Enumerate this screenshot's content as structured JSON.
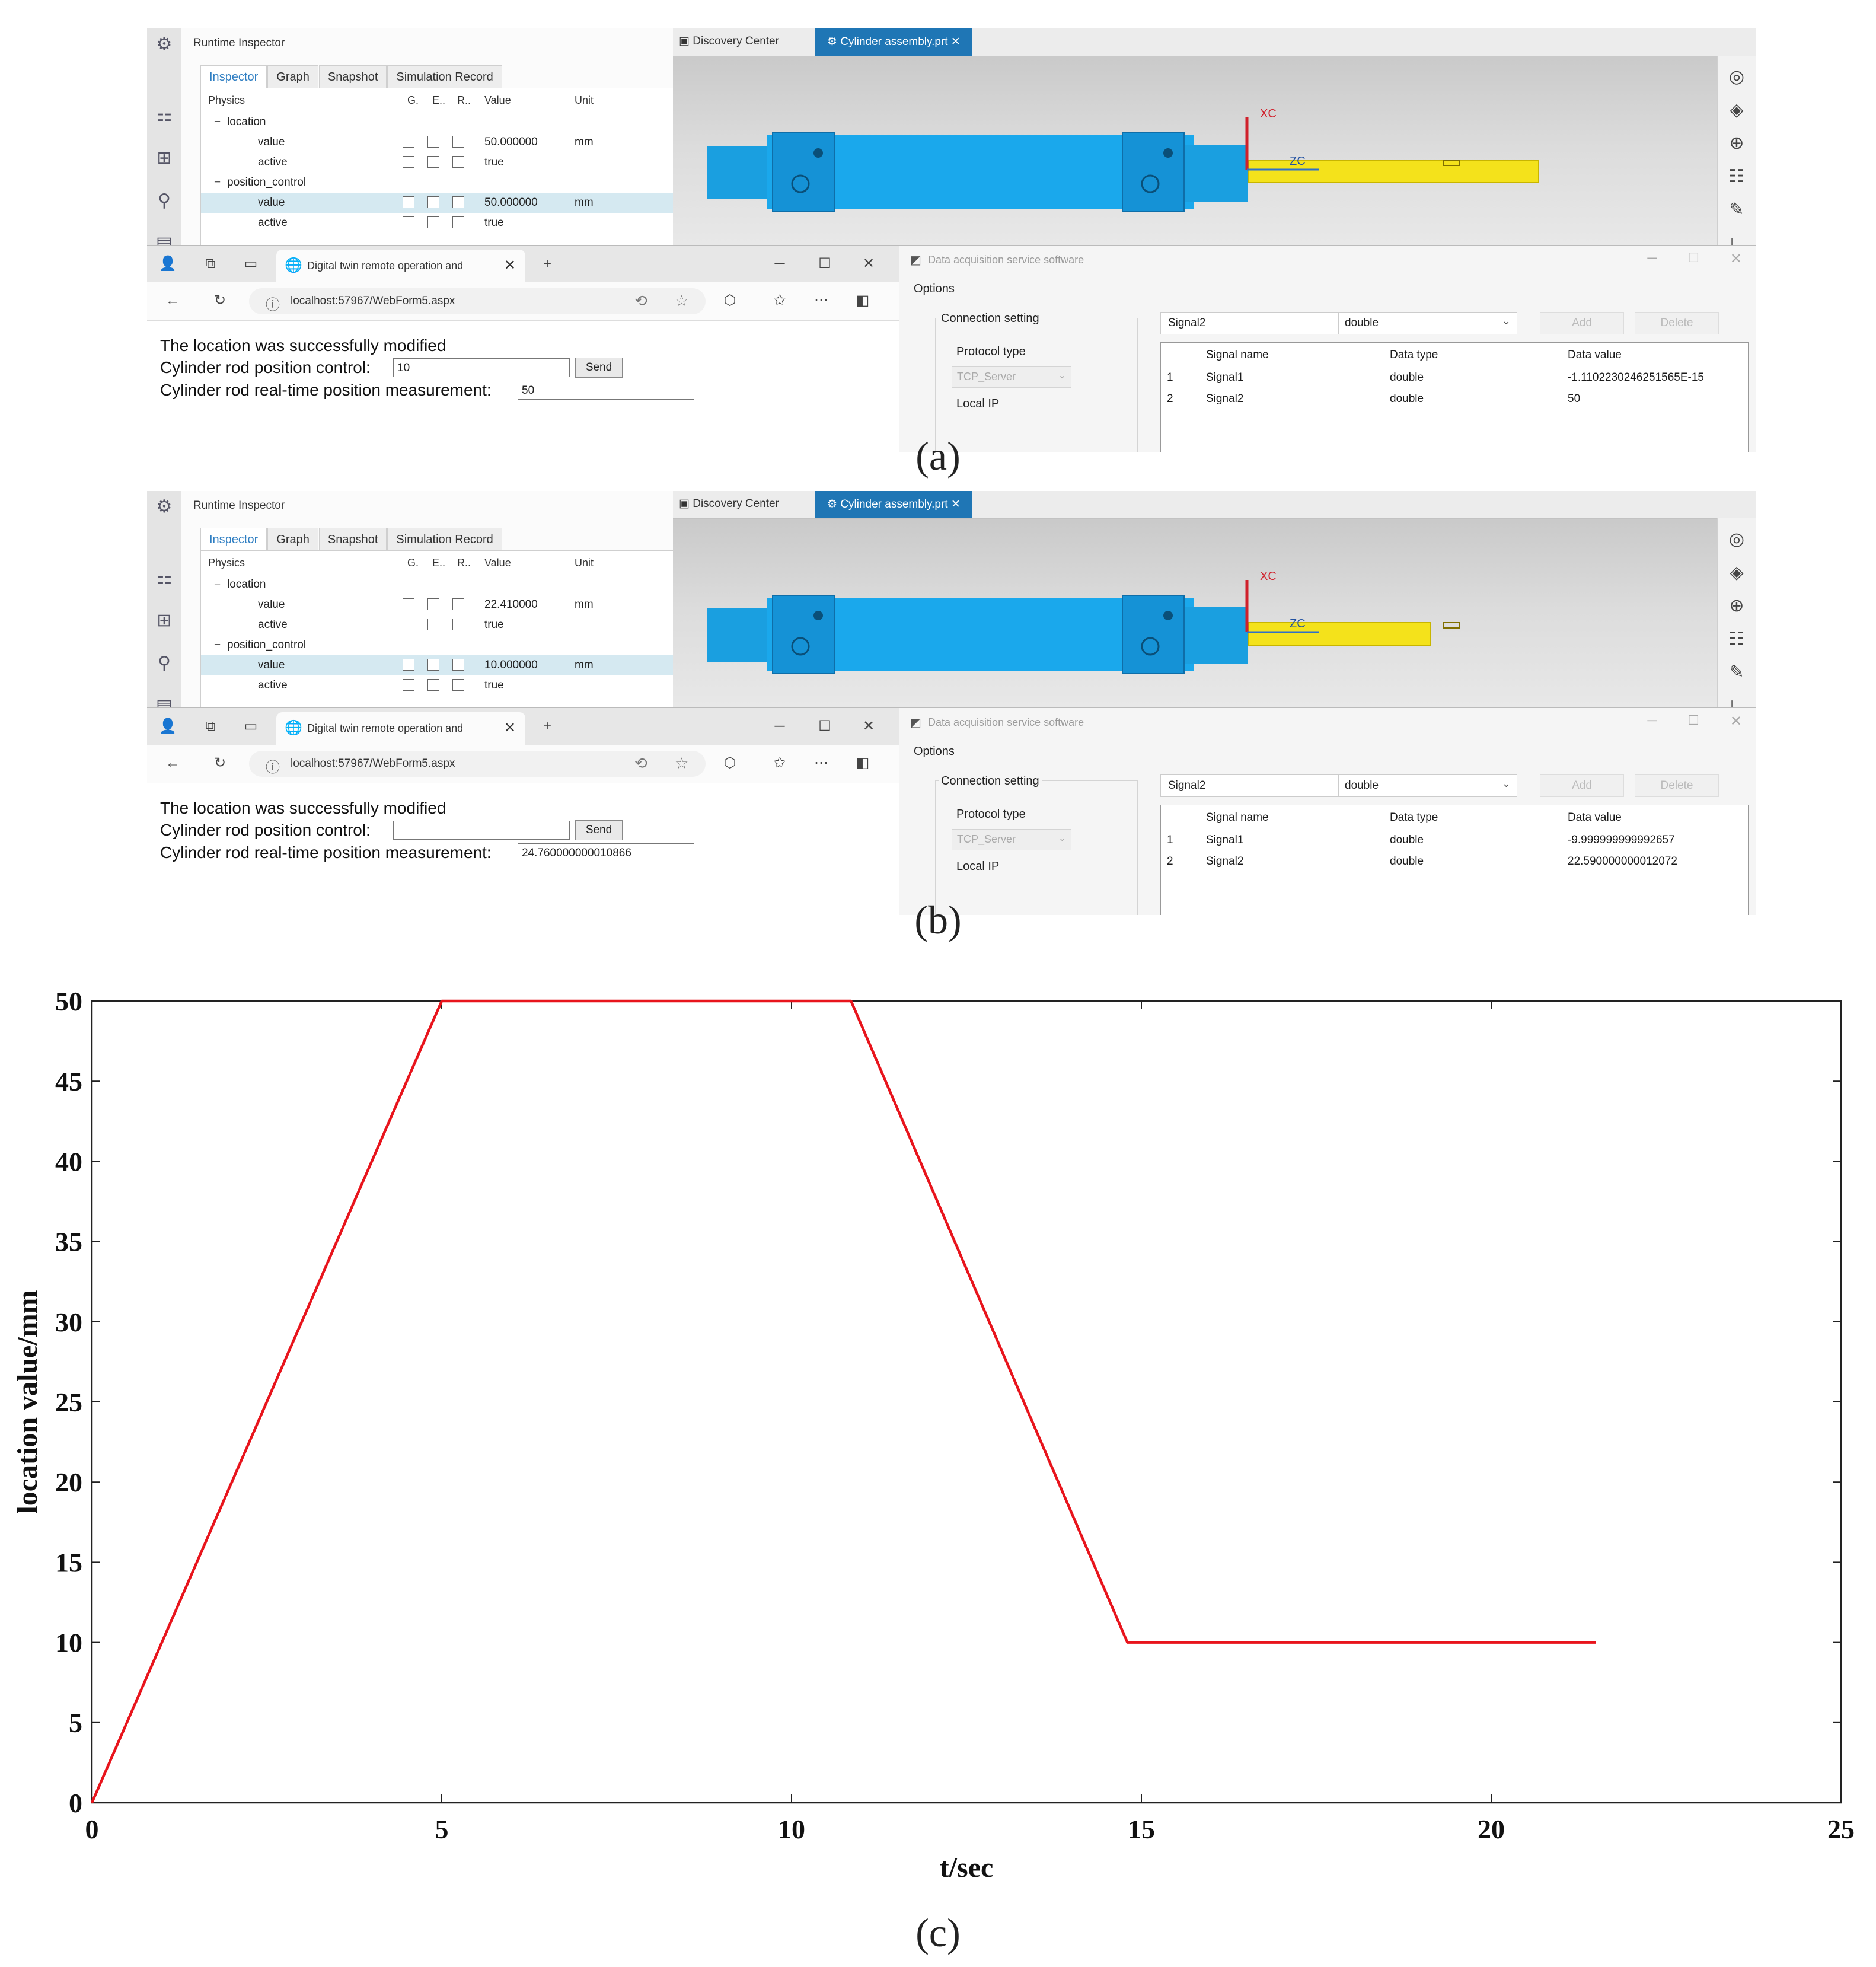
{
  "captions": {
    "a": "(a)",
    "b": "(b)",
    "c": "(c)"
  },
  "panels": [
    {
      "inspector": {
        "title": "Runtime Inspector",
        "tabs": [
          "Inspector",
          "Graph",
          "Snapshot",
          "Simulation Record"
        ],
        "columns": [
          "Physics",
          "G.",
          "E..",
          "R..",
          "Value",
          "Unit"
        ],
        "rows": [
          {
            "expander": "−",
            "name": "location",
            "value": "",
            "unit": ""
          },
          {
            "expander": "",
            "name": "value",
            "value": "50.000000",
            "unit": "mm"
          },
          {
            "expander": "",
            "name": "active",
            "value": "true",
            "unit": ""
          },
          {
            "expander": "−",
            "name": "position_control",
            "value": "",
            "unit": ""
          },
          {
            "expander": "",
            "name": "value",
            "value": "50.000000",
            "unit": "mm"
          },
          {
            "expander": "",
            "name": "active",
            "value": "true",
            "unit": ""
          }
        ]
      },
      "viewport": {
        "tab1": "Discovery Center",
        "tab2": "Cylinder assembly.prt",
        "axis_x": "XC",
        "axis_z": "ZC",
        "rod_extension": 50
      },
      "browser": {
        "tab_title": "Digital twin remote operation and",
        "url": "localhost:57967/WebForm5.aspx",
        "line1": "The location was successfully modified",
        "control_label": "Cylinder rod position control:",
        "control_value": "10",
        "send_label": "Send",
        "measure_label": "Cylinder rod real-time position measurement:",
        "measure_value": "50"
      },
      "daq": {
        "title": "Data acquisition service software",
        "options": "Options",
        "connection": "Connection setting",
        "protocol_label": "Protocol type",
        "protocol_value": "TCP_Server",
        "local_ip": "Local IP",
        "signal_input": "Signal2",
        "type_select": "double",
        "add": "Add",
        "delete": "Delete",
        "headers": [
          "Signal name",
          "Data type",
          "Data value"
        ],
        "rows": [
          {
            "idx": "1",
            "name": "Signal1",
            "type": "double",
            "value": "-1.11022302462515​65E-15"
          },
          {
            "idx": "2",
            "name": "Signal2",
            "type": "double",
            "value": "50"
          }
        ]
      }
    },
    {
      "inspector": {
        "title": "Runtime Inspector",
        "tabs": [
          "Inspector",
          "Graph",
          "Snapshot",
          "Simulation Record"
        ],
        "columns": [
          "Physics",
          "G.",
          "E..",
          "R..",
          "Value",
          "Unit"
        ],
        "rows": [
          {
            "expander": "−",
            "name": "location",
            "value": "",
            "unit": ""
          },
          {
            "expander": "",
            "name": "value",
            "value": "22.410000",
            "unit": "mm"
          },
          {
            "expander": "",
            "name": "active",
            "value": "true",
            "unit": ""
          },
          {
            "expander": "−",
            "name": "position_control",
            "value": "",
            "unit": ""
          },
          {
            "expander": "",
            "name": "value",
            "value": "10.000000",
            "unit": "mm"
          },
          {
            "expander": "",
            "name": "active",
            "value": "true",
            "unit": ""
          }
        ]
      },
      "viewport": {
        "tab1": "Discovery Center",
        "tab2": "Cylinder assembly.prt",
        "axis_x": "XC",
        "axis_z": "ZC",
        "rod_extension": 22.41
      },
      "browser": {
        "tab_title": "Digital twin remote operation and",
        "url": "localhost:57967/WebForm5.aspx",
        "line1": "The location was successfully modified",
        "control_label": "Cylinder rod position control:",
        "control_value": "",
        "send_label": "Send",
        "measure_label": "Cylinder rod real-time position measurement:",
        "measure_value": "24.760000000010866"
      },
      "daq": {
        "title": "Data acquisition service software",
        "options": "Options",
        "connection": "Connection setting",
        "protocol_label": "Protocol type",
        "protocol_value": "TCP_Server",
        "local_ip": "Local IP",
        "signal_input": "Signal2",
        "type_select": "double",
        "add": "Add",
        "delete": "Delete",
        "headers": [
          "Signal name",
          "Data type",
          "Data value"
        ],
        "rows": [
          {
            "idx": "1",
            "name": "Signal1",
            "type": "double",
            "value": "-9.999999999992657"
          },
          {
            "idx": "2",
            "name": "Signal2",
            "type": "double",
            "value": "22.590000000012072"
          }
        ]
      }
    }
  ],
  "chart_data": {
    "type": "line",
    "xlabel": "t/sec",
    "ylabel": "location value/mm",
    "xlim": [
      0,
      25
    ],
    "ylim": [
      0,
      50
    ],
    "xticks": [
      0,
      5,
      10,
      15,
      20,
      25
    ],
    "yticks": [
      0,
      5,
      10,
      15,
      20,
      25,
      30,
      35,
      40,
      45,
      50
    ],
    "grid": false,
    "color": "#e8141c",
    "x": [
      0,
      5,
      10.85,
      14.8,
      21.5
    ],
    "y": [
      0,
      50,
      50,
      10,
      10
    ]
  }
}
